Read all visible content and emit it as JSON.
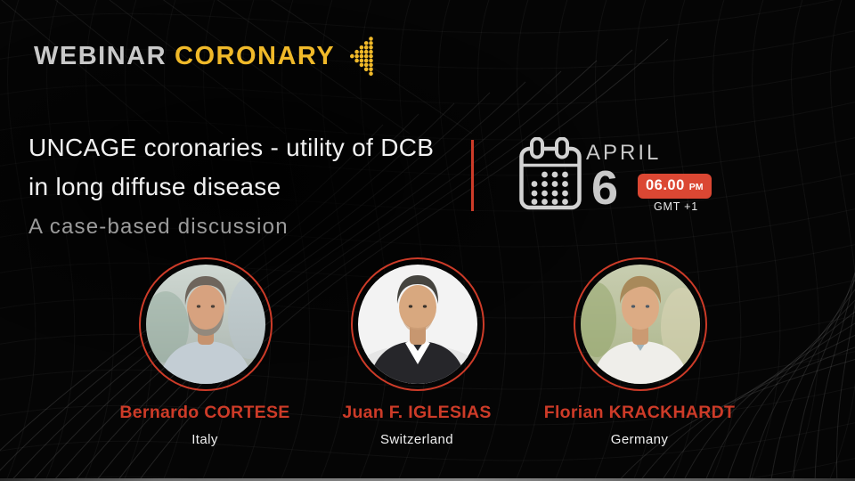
{
  "colors": {
    "accent_yellow": "#F0B929",
    "accent_red": "#CD3B28",
    "badge_red": "#DB4733",
    "text_light": "#C9C9C9",
    "text_white": "#F1F1F1",
    "text_muted": "#9B9B9B"
  },
  "header": {
    "brand_primary": "WEBINAR",
    "brand_secondary": "CORONARY",
    "arrow_icon": "dot-arrow-left"
  },
  "title": {
    "line1": "UNCAGE coronaries - utility of DCB",
    "line2": "in long diffuse disease",
    "subtitle": "A case-based discussion"
  },
  "event": {
    "calendar_icon": "calendar-grid",
    "month": "APRIL",
    "day": "6",
    "time": "06.00",
    "meridiem": "PM",
    "timezone": "GMT +1"
  },
  "speakers": [
    {
      "name": "Bernardo CORTESE",
      "country": "Italy"
    },
    {
      "name": "Juan F. IGLESIAS",
      "country": "Switzerland"
    },
    {
      "name": "Florian KRACKHARDT",
      "country": "Germany"
    }
  ]
}
